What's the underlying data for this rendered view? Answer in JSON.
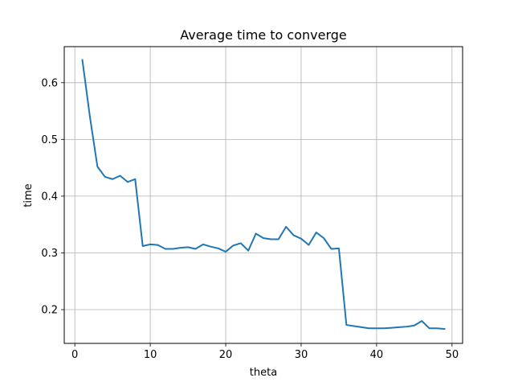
{
  "chart_data": {
    "type": "line",
    "title": "Average time to converge",
    "xlabel": "theta",
    "ylabel": "time",
    "xlim": [
      -1.4,
      51.4
    ],
    "ylim": [
      0.1405,
      0.6635
    ],
    "xticks": [
      0,
      10,
      20,
      30,
      40,
      50
    ],
    "yticks": [
      0.2,
      0.3,
      0.4,
      0.5,
      0.6
    ],
    "xtick_labels": [
      "0",
      "10",
      "20",
      "30",
      "40",
      "50"
    ],
    "ytick_labels": [
      "0.2",
      "0.3",
      "0.4",
      "0.5",
      "0.6"
    ],
    "grid": true,
    "line_color": "#1f77b4",
    "series": [
      {
        "x": [
          1,
          2,
          3,
          4,
          5,
          6,
          7,
          8,
          9,
          10,
          11,
          12,
          13,
          14,
          15,
          16,
          17,
          18,
          19,
          20,
          21,
          22,
          23,
          24,
          25,
          26,
          27,
          28,
          29,
          30,
          31,
          32,
          33,
          34,
          35,
          36,
          37,
          38,
          39,
          40,
          41,
          42,
          43,
          44,
          45,
          46,
          47,
          48,
          49
        ],
        "y": [
          0.64,
          0.54,
          0.452,
          0.434,
          0.43,
          0.436,
          0.425,
          0.43,
          0.312,
          0.315,
          0.314,
          0.307,
          0.307,
          0.309,
          0.31,
          0.307,
          0.315,
          0.311,
          0.308,
          0.302,
          0.313,
          0.317,
          0.304,
          0.334,
          0.326,
          0.324,
          0.324,
          0.346,
          0.331,
          0.325,
          0.314,
          0.336,
          0.326,
          0.307,
          0.308,
          0.173,
          0.171,
          0.169,
          0.167,
          0.167,
          0.167,
          0.168,
          0.169,
          0.17,
          0.172,
          0.18,
          0.167,
          0.167,
          0.166
        ]
      }
    ]
  }
}
